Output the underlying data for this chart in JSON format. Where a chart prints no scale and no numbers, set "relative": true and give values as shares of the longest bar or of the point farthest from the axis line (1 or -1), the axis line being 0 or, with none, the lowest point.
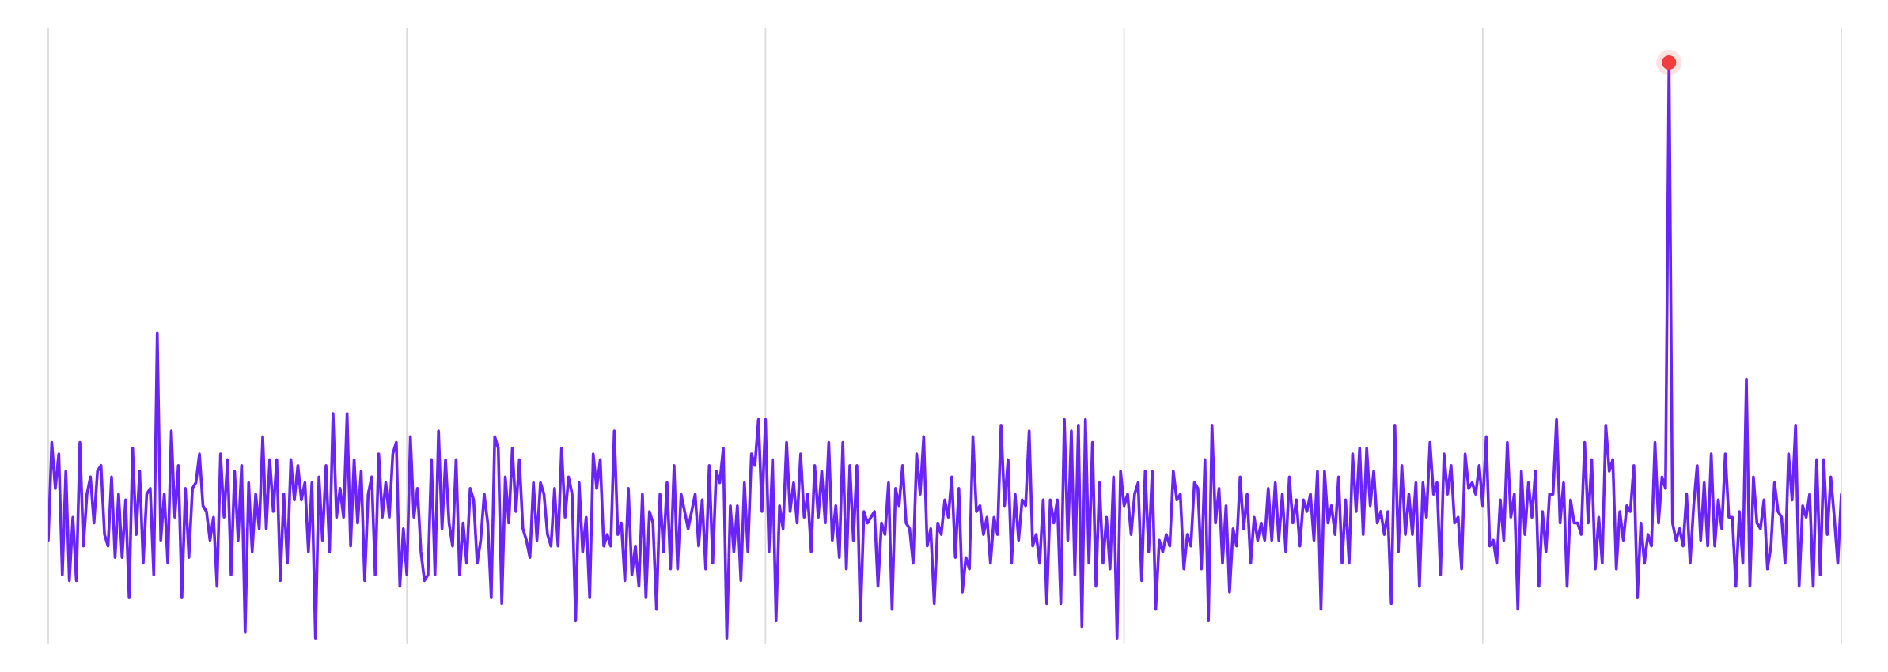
{
  "chart_data": {
    "type": "line",
    "relative": true,
    "grid": "x",
    "categories": [
      null,
      null,
      null,
      null,
      null,
      null,
      null,
      null,
      null,
      null,
      null,
      null,
      null,
      null,
      null,
      null,
      null,
      null,
      null,
      null,
      null,
      null,
      null,
      null,
      null,
      null,
      null,
      null,
      null,
      null,
      null,
      null,
      null,
      null,
      null,
      null,
      null,
      null,
      null,
      null,
      null,
      null,
      null,
      null,
      null,
      null,
      null,
      null,
      null,
      null,
      null,
      null,
      null,
      null,
      null,
      null,
      null,
      null,
      null,
      null,
      null,
      null,
      null,
      null,
      null,
      null,
      null,
      null,
      null,
      null,
      null,
      null,
      null,
      null,
      null,
      null,
      null,
      null,
      null,
      null,
      null,
      null,
      null,
      null,
      null,
      null,
      null,
      null,
      null,
      null,
      null,
      null,
      null,
      null,
      null,
      null,
      null,
      null,
      null,
      null,
      null,
      null,
      null,
      null,
      null,
      null,
      null,
      null,
      null,
      null,
      null,
      null,
      null,
      null,
      null,
      null,
      null,
      null,
      null,
      null,
      null,
      null,
      null,
      null,
      null,
      null,
      null,
      null,
      null,
      null,
      null,
      null,
      null,
      null,
      null,
      null,
      null,
      null,
      null,
      null,
      null,
      null,
      null,
      null,
      null,
      null,
      null,
      null,
      null,
      null,
      null,
      null,
      null,
      null,
      null,
      null,
      null,
      null,
      null,
      null,
      null,
      null,
      null,
      null,
      null,
      null,
      null,
      null,
      null,
      null,
      null,
      null,
      null,
      null,
      null,
      null,
      null,
      null,
      null,
      null,
      null,
      null,
      null,
      null,
      null,
      null,
      null,
      null,
      null,
      null,
      null,
      null,
      null,
      null,
      null,
      null,
      null,
      null,
      null,
      null,
      null,
      null,
      null,
      null,
      null,
      null,
      null,
      null,
      null,
      null,
      null,
      null,
      null,
      null,
      null,
      null,
      null,
      null,
      null,
      null,
      null,
      null,
      null,
      null,
      null,
      null,
      null,
      null,
      null,
      null,
      null,
      null,
      null,
      null,
      null,
      null,
      null,
      null,
      null,
      null,
      null,
      null,
      null,
      null,
      null,
      null,
      null,
      null,
      null,
      null,
      null,
      null,
      null,
      null,
      null,
      null,
      null,
      null,
      null,
      null,
      null,
      null,
      null,
      null,
      null,
      null,
      null,
      null,
      null,
      null,
      null,
      null,
      null,
      null,
      null,
      null,
      null,
      null,
      null,
      null,
      null,
      null,
      null,
      null,
      null,
      null,
      null,
      null,
      null,
      null,
      null,
      null,
      null,
      null,
      null,
      null,
      null,
      null,
      null,
      null,
      null,
      null,
      null,
      null,
      null,
      null,
      null,
      null,
      null,
      null,
      null,
      null,
      null,
      null,
      null,
      null,
      null,
      null,
      null,
      null,
      null,
      null,
      null,
      null,
      null,
      null,
      null,
      null,
      null,
      null,
      null,
      null,
      null,
      null,
      null,
      null,
      null,
      null,
      null,
      null,
      null,
      null,
      null,
      null,
      null,
      null,
      null,
      null,
      null,
      null,
      null,
      null,
      null,
      null,
      null,
      null,
      null,
      null,
      null,
      null,
      null,
      null,
      null,
      null,
      null,
      null,
      null,
      null,
      null,
      null,
      null,
      null,
      null,
      null,
      null,
      null,
      null,
      null,
      null,
      null,
      null,
      null,
      null,
      null,
      null,
      null,
      null,
      null,
      null,
      null,
      null,
      null,
      null,
      null,
      null,
      null,
      null,
      null,
      null,
      null,
      null,
      null,
      null,
      null,
      null,
      null,
      null,
      null,
      null,
      null,
      null,
      null,
      null,
      null,
      null,
      null,
      null,
      null,
      null,
      null,
      null,
      null,
      null,
      null,
      null,
      null,
      null,
      null,
      null,
      null,
      null,
      null,
      null,
      null,
      null,
      null,
      null,
      null,
      null,
      null,
      null,
      null,
      null,
      null,
      null,
      null,
      null,
      null,
      null,
      null,
      null,
      null,
      null,
      null,
      null,
      null,
      null,
      null,
      null,
      null,
      null,
      null,
      null,
      null,
      null,
      null,
      null,
      null,
      null,
      null,
      null,
      null,
      null,
      null,
      null,
      null,
      null,
      null,
      null,
      null,
      null,
      null,
      null,
      null,
      null,
      null,
      null,
      null,
      null,
      null,
      null,
      null,
      null,
      null,
      null,
      null,
      null,
      null,
      null,
      null,
      null,
      null,
      null,
      null,
      null,
      null,
      null,
      null,
      null,
      null,
      null
    ],
    "series": [
      {
        "color": "#6a24fa",
        "values": [
          0.17,
          0.34,
          0.26,
          0.32,
          0.11,
          0.29,
          0.1,
          0.21,
          0.1,
          0.34,
          0.16,
          0.25,
          0.28,
          0.2,
          0.29,
          0.3,
          0.18,
          0.16,
          0.28,
          0.14,
          0.25,
          0.14,
          0.24,
          0.07,
          0.33,
          0.18,
          0.29,
          0.13,
          0.25,
          0.26,
          0.11,
          0.53,
          0.17,
          0.25,
          0.13,
          0.36,
          0.21,
          0.3,
          0.07,
          0.26,
          0.14,
          0.26,
          0.27,
          0.32,
          0.23,
          0.22,
          0.17,
          0.21,
          0.09,
          0.32,
          0.21,
          0.31,
          0.11,
          0.29,
          0.17,
          0.3,
          0.01,
          0.27,
          0.15,
          0.25,
          0.19,
          0.35,
          0.19,
          0.31,
          0.22,
          0.31,
          0.1,
          0.25,
          0.13,
          0.31,
          0.24,
          0.3,
          0.24,
          0.27,
          0.15,
          0.27,
          0.0,
          0.28,
          0.17,
          0.3,
          0.15,
          0.39,
          0.21,
          0.26,
          0.21,
          0.39,
          0.16,
          0.31,
          0.2,
          0.29,
          0.1,
          0.25,
          0.28,
          0.11,
          0.32,
          0.21,
          0.27,
          0.21,
          0.32,
          0.34,
          0.09,
          0.19,
          0.11,
          0.35,
          0.21,
          0.26,
          0.15,
          0.1,
          0.11,
          0.31,
          0.11,
          0.36,
          0.19,
          0.31,
          0.2,
          0.16,
          0.31,
          0.11,
          0.2,
          0.13,
          0.26,
          0.24,
          0.13,
          0.17,
          0.25,
          0.2,
          0.07,
          0.35,
          0.33,
          0.06,
          0.28,
          0.2,
          0.33,
          0.22,
          0.31,
          0.19,
          0.17,
          0.14,
          0.27,
          0.17,
          0.27,
          0.25,
          0.18,
          0.16,
          0.26,
          0.16,
          0.33,
          0.21,
          0.28,
          0.25,
          0.03,
          0.27,
          0.15,
          0.21,
          0.07,
          0.32,
          0.26,
          0.31,
          0.16,
          0.18,
          0.16,
          0.36,
          0.18,
          0.2,
          0.1,
          0.26,
          0.11,
          0.16,
          0.09,
          0.25,
          0.07,
          0.22,
          0.2,
          0.05,
          0.25,
          0.15,
          0.27,
          0.12,
          0.3,
          0.12,
          0.25,
          0.22,
          0.19,
          0.22,
          0.25,
          0.16,
          0.24,
          0.12,
          0.3,
          0.13,
          0.29,
          0.27,
          0.33,
          0.0,
          0.23,
          0.15,
          0.23,
          0.1,
          0.27,
          0.15,
          0.32,
          0.3,
          0.38,
          0.22,
          0.38,
          0.15,
          0.31,
          0.03,
          0.23,
          0.19,
          0.34,
          0.22,
          0.27,
          0.2,
          0.32,
          0.21,
          0.25,
          0.15,
          0.3,
          0.21,
          0.29,
          0.2,
          0.34,
          0.17,
          0.23,
          0.14,
          0.34,
          0.12,
          0.3,
          0.17,
          0.3,
          0.03,
          0.22,
          0.2,
          0.21,
          0.22,
          0.09,
          0.2,
          0.18,
          0.27,
          0.05,
          0.26,
          0.23,
          0.3,
          0.2,
          0.19,
          0.13,
          0.32,
          0.25,
          0.35,
          0.16,
          0.19,
          0.06,
          0.2,
          0.18,
          0.24,
          0.21,
          0.28,
          0.14,
          0.26,
          0.08,
          0.14,
          0.12,
          0.35,
          0.22,
          0.23,
          0.18,
          0.21,
          0.13,
          0.21,
          0.18,
          0.37,
          0.23,
          0.31,
          0.13,
          0.25,
          0.17,
          0.24,
          0.23,
          0.36,
          0.16,
          0.18,
          0.13,
          0.24,
          0.06,
          0.24,
          0.2,
          0.24,
          0.06,
          0.38,
          0.17,
          0.36,
          0.11,
          0.37,
          0.02,
          0.38,
          0.13,
          0.34,
          0.09,
          0.27,
          0.13,
          0.21,
          0.12,
          0.28,
          0.0,
          0.29,
          0.23,
          0.25,
          0.18,
          0.25,
          0.27,
          0.1,
          0.29,
          0.15,
          0.29,
          0.05,
          0.17,
          0.15,
          0.18,
          0.16,
          0.29,
          0.24,
          0.25,
          0.12,
          0.18,
          0.16,
          0.27,
          0.26,
          0.12,
          0.31,
          0.03,
          0.37,
          0.2,
          0.26,
          0.13,
          0.23,
          0.08,
          0.19,
          0.16,
          0.28,
          0.19,
          0.25,
          0.13,
          0.21,
          0.17,
          0.2,
          0.17,
          0.26,
          0.17,
          0.27,
          0.17,
          0.25,
          0.15,
          0.28,
          0.2,
          0.24,
          0.16,
          0.24,
          0.22,
          0.25,
          0.17,
          0.29,
          0.05,
          0.29,
          0.2,
          0.23,
          0.18,
          0.28,
          0.13,
          0.24,
          0.13,
          0.32,
          0.22,
          0.33,
          0.18,
          0.33,
          0.23,
          0.29,
          0.2,
          0.22,
          0.18,
          0.22,
          0.06,
          0.37,
          0.15,
          0.3,
          0.18,
          0.25,
          0.18,
          0.27,
          0.09,
          0.27,
          0.21,
          0.34,
          0.25,
          0.27,
          0.11,
          0.32,
          0.25,
          0.3,
          0.2,
          0.21,
          0.12,
          0.32,
          0.26,
          0.27,
          0.25,
          0.3,
          0.23,
          0.35,
          0.16,
          0.17,
          0.13,
          0.24,
          0.17,
          0.34,
          0.21,
          0.25,
          0.05,
          0.29,
          0.18,
          0.27,
          0.21,
          0.29,
          0.09,
          0.22,
          0.15,
          0.25,
          0.25,
          0.38,
          0.2,
          0.27,
          0.09,
          0.24,
          0.2,
          0.2,
          0.18,
          0.34,
          0.2,
          0.31,
          0.12,
          0.21,
          0.13,
          0.37,
          0.29,
          0.31,
          0.12,
          0.22,
          0.17,
          0.23,
          0.22,
          0.3,
          0.07,
          0.2,
          0.13,
          0.18,
          0.16,
          0.34,
          0.2,
          0.28,
          0.26,
          1.0,
          0.2,
          0.17,
          0.19,
          0.16,
          0.25,
          0.13,
          0.23,
          0.3,
          0.17,
          0.27,
          0.16,
          0.32,
          0.16,
          0.24,
          0.19,
          0.32,
          0.21,
          0.21,
          0.09,
          0.22,
          0.13,
          0.45,
          0.09,
          0.28,
          0.2,
          0.19,
          0.24,
          0.12,
          0.16,
          0.27,
          0.22,
          0.21,
          0.13,
          0.32,
          0.24,
          0.37,
          0.09,
          0.23,
          0.21,
          0.25,
          0.09,
          0.31,
          0.11,
          0.31,
          0.18,
          0.28,
          0.21,
          0.13,
          0.25
        ]
      }
    ]
  }
}
